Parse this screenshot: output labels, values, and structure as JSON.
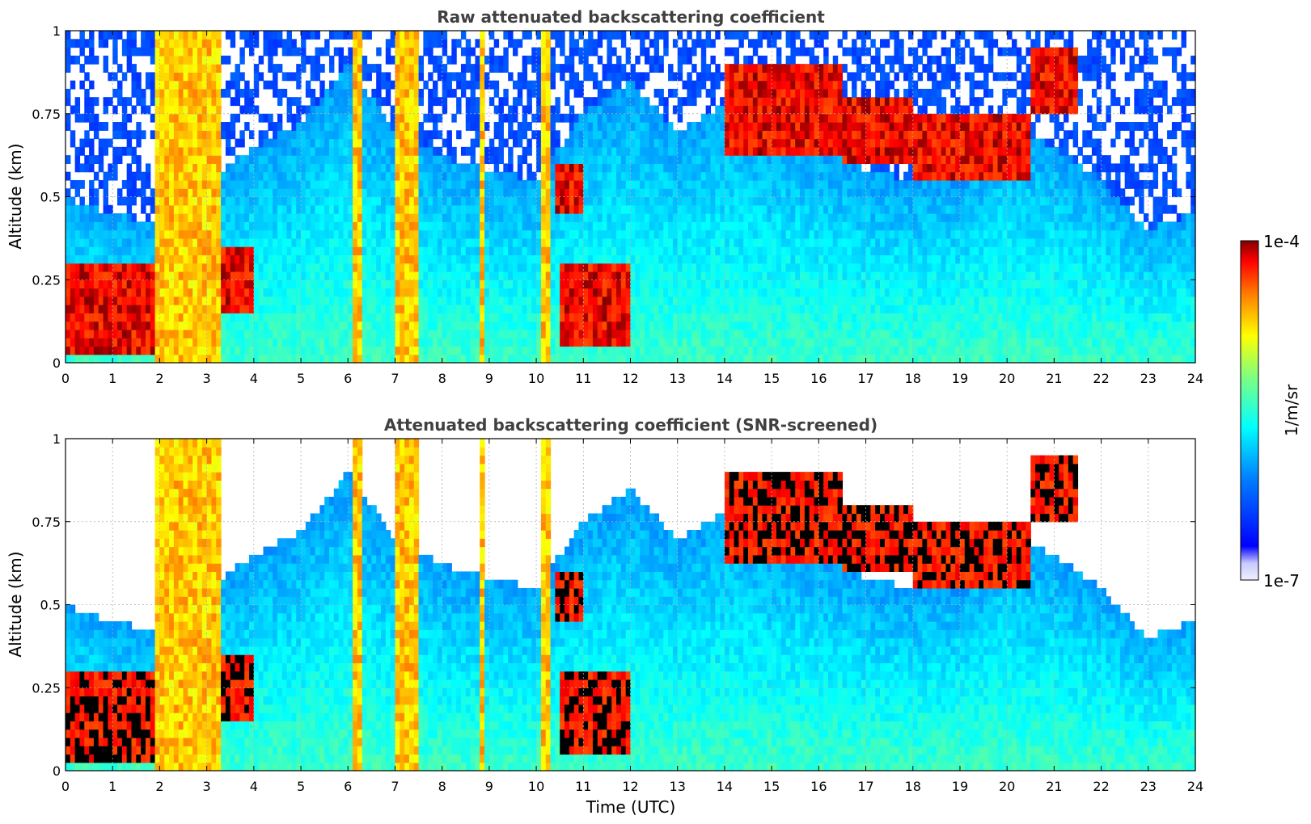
{
  "chart_data": [
    {
      "type": "heatmap",
      "title": "Raw attenuated backscattering coefficient",
      "xlabel": "",
      "ylabel": "Altitude (km)",
      "xlim": [
        0,
        24
      ],
      "ylim": [
        0,
        1
      ],
      "x_ticks": [
        "0",
        "1",
        "2",
        "3",
        "4",
        "5",
        "6",
        "7",
        "8",
        "9",
        "10",
        "11",
        "12",
        "13",
        "14",
        "15",
        "16",
        "17",
        "18",
        "19",
        "20",
        "21",
        "22",
        "23",
        "24"
      ],
      "y_ticks": [
        "0",
        "0.25",
        "0.5",
        "0.75",
        "1"
      ],
      "grid": true,
      "screened": false,
      "profile_top_km": [
        0.5,
        0.45,
        0.42,
        0.55,
        0.65,
        0.72,
        0.9,
        0.7,
        0.62,
        0.58,
        0.55,
        0.75,
        0.85,
        0.7,
        0.78,
        0.72,
        0.65,
        0.58,
        0.55,
        0.56,
        0.72,
        0.65,
        0.55,
        0.4,
        0.45,
        0.5
      ],
      "cloud_layer_km": [
        {
          "t0": 0.0,
          "t1": 2.4,
          "base": 0.02,
          "top": 0.3
        },
        {
          "t0": 10.5,
          "t1": 12.0,
          "base": 0.05,
          "top": 0.3
        },
        {
          "t0": 10.4,
          "t1": 11.0,
          "base": 0.45,
          "top": 0.6
        },
        {
          "t0": 3.3,
          "t1": 4.0,
          "base": 0.15,
          "top": 0.35
        },
        {
          "t0": 14.0,
          "t1": 16.5,
          "base": 0.62,
          "top": 0.9
        },
        {
          "t0": 16.5,
          "t1": 18.0,
          "base": 0.6,
          "top": 0.8
        },
        {
          "t0": 18.0,
          "t1": 20.5,
          "base": 0.55,
          "top": 0.75
        },
        {
          "t0": 20.5,
          "t1": 21.5,
          "base": 0.75,
          "top": 0.95
        }
      ],
      "aerosol_plumes": [
        {
          "t0": 1.95,
          "t1": 3.3,
          "top": 1.0
        },
        {
          "t0": 7.0,
          "t1": 7.5,
          "top": 1.0
        },
        {
          "t0": 6.1,
          "t1": 6.25,
          "top": 1.0
        },
        {
          "t0": 8.85,
          "t1": 8.95,
          "top": 1.0
        },
        {
          "t0": 10.1,
          "t1": 10.3,
          "top": 1.0
        }
      ]
    },
    {
      "type": "heatmap",
      "title": "Attenuated backscattering coefficient (SNR-screened)",
      "xlabel": "Time (UTC)",
      "ylabel": "Altitude (km)",
      "xlim": [
        0,
        24
      ],
      "ylim": [
        0,
        1
      ],
      "x_ticks": [
        "0",
        "1",
        "2",
        "3",
        "4",
        "5",
        "6",
        "7",
        "8",
        "9",
        "10",
        "11",
        "12",
        "13",
        "14",
        "15",
        "16",
        "17",
        "18",
        "19",
        "20",
        "21",
        "22",
        "23",
        "24"
      ],
      "y_ticks": [
        "0",
        "0.25",
        "0.5",
        "0.75",
        "1"
      ],
      "grid": true,
      "screened": true
    }
  ],
  "colorbar": {
    "label": "1/m/sr",
    "max_label": "1e-4",
    "min_label": "1e-7",
    "colormap": "jet",
    "colors": [
      "#e8e8ff",
      "#0000ff",
      "#00a0ff",
      "#00ffff",
      "#80ff80",
      "#ffff00",
      "#ff8000",
      "#ff0000",
      "#800000"
    ]
  }
}
